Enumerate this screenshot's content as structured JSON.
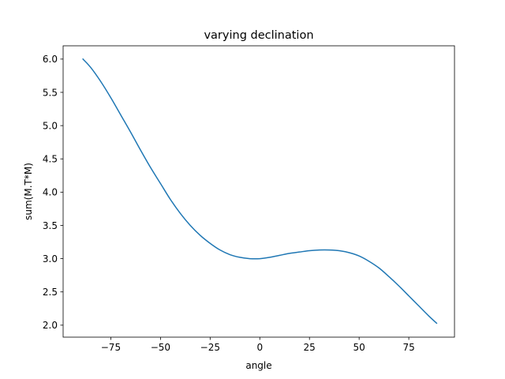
{
  "chart_data": {
    "type": "line",
    "title": "varying declination",
    "xlabel": "angle",
    "ylabel": "sum(M.T*M)",
    "xlim": [
      -99,
      98
    ],
    "ylim": [
      1.82,
      6.2
    ],
    "xticks": [
      -75,
      -50,
      -25,
      0,
      25,
      50,
      75
    ],
    "xtick_labels": [
      "−75",
      "−50",
      "−25",
      "0",
      "25",
      "50",
      "75"
    ],
    "yticks": [
      2.0,
      2.5,
      3.0,
      3.5,
      4.0,
      4.5,
      5.0,
      5.5,
      6.0
    ],
    "ytick_labels": [
      "2.0",
      "2.5",
      "3.0",
      "3.5",
      "4.0",
      "4.5",
      "5.0",
      "5.5",
      "6.0"
    ],
    "grid": false,
    "line_color": "#1f77b4",
    "series": [
      {
        "x": [
          -89,
          -85,
          -80,
          -75,
          -70,
          -65,
          -60,
          -55,
          -50,
          -45,
          -40,
          -35,
          -30,
          -25,
          -20,
          -15,
          -10,
          -5,
          0,
          5,
          10,
          15,
          20,
          25,
          30,
          35,
          40,
          45,
          50,
          55,
          60,
          65,
          70,
          75,
          80,
          85,
          89
        ],
        "values": [
          6.0,
          5.87,
          5.66,
          5.42,
          5.16,
          4.9,
          4.63,
          4.37,
          4.13,
          3.89,
          3.68,
          3.5,
          3.35,
          3.23,
          3.13,
          3.06,
          3.02,
          3.0,
          3.0,
          3.02,
          3.05,
          3.08,
          3.1,
          3.12,
          3.13,
          3.13,
          3.12,
          3.09,
          3.04,
          2.96,
          2.86,
          2.73,
          2.59,
          2.44,
          2.29,
          2.14,
          2.03
        ]
      }
    ]
  }
}
